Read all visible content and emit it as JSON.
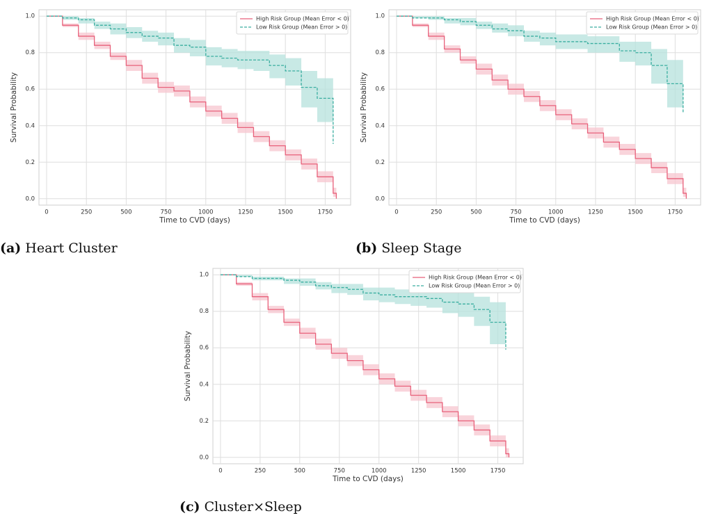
{
  "chart_data": [
    {
      "type": "line",
      "caption": {
        "label": "(a)",
        "text": "Heart Cluster"
      },
      "xlabel": "Time to CVD (days)",
      "ylabel": "Survival Probability",
      "x": [
        0,
        100,
        200,
        300,
        400,
        500,
        600,
        700,
        800,
        900,
        1000,
        1100,
        1200,
        1300,
        1400,
        1500,
        1600,
        1700,
        1800,
        1820
      ],
      "series": [
        {
          "name": "High Risk Group (Mean Error < 0)",
          "color": "#e8607a",
          "band_color": "#f7c5cf",
          "dash": false,
          "values": [
            1.0,
            0.95,
            0.89,
            0.84,
            0.78,
            0.73,
            0.66,
            0.61,
            0.59,
            0.53,
            0.48,
            0.44,
            0.39,
            0.34,
            0.29,
            0.24,
            0.19,
            0.12,
            0.03,
            0.0
          ],
          "lower": [
            1.0,
            0.94,
            0.87,
            0.82,
            0.76,
            0.7,
            0.63,
            0.58,
            0.56,
            0.5,
            0.45,
            0.41,
            0.36,
            0.31,
            0.26,
            0.21,
            0.16,
            0.09,
            0.01,
            0.0
          ],
          "upper": [
            1.0,
            0.96,
            0.91,
            0.86,
            0.8,
            0.76,
            0.69,
            0.64,
            0.62,
            0.56,
            0.51,
            0.47,
            0.42,
            0.37,
            0.32,
            0.27,
            0.22,
            0.15,
            0.06,
            0.02
          ]
        },
        {
          "name": "Low Risk Group (Mean Error > 0)",
          "color": "#3aaea0",
          "band_color": "#b5e2dc",
          "dash": true,
          "values": [
            1.0,
            0.99,
            0.98,
            0.95,
            0.93,
            0.91,
            0.89,
            0.88,
            0.84,
            0.83,
            0.78,
            0.77,
            0.76,
            0.76,
            0.73,
            0.7,
            0.61,
            0.55,
            0.3,
            null
          ],
          "lower": [
            1.0,
            0.98,
            0.96,
            0.93,
            0.9,
            0.88,
            0.86,
            0.84,
            0.8,
            0.78,
            0.73,
            0.72,
            0.71,
            0.7,
            0.66,
            0.62,
            0.5,
            0.42,
            0.13,
            null
          ],
          "upper": [
            1.0,
            1.0,
            0.99,
            0.97,
            0.96,
            0.94,
            0.92,
            0.91,
            0.88,
            0.87,
            0.83,
            0.82,
            0.81,
            0.81,
            0.79,
            0.77,
            0.7,
            0.66,
            0.5,
            null
          ]
        }
      ],
      "xlim": [
        -48,
        1910
      ],
      "ylim": [
        -0.035,
        1.035
      ],
      "xticks": [
        0,
        250,
        500,
        750,
        1000,
        1250,
        1500,
        1750
      ],
      "yticks": [
        {
          "value": 0,
          "label": "0.0"
        },
        0.2,
        0.4,
        0.6,
        0.8,
        {
          "value": 1,
          "label": "1.0"
        }
      ],
      "grid": true,
      "legend": "upper right"
    },
    {
      "type": "line",
      "caption": {
        "label": "(b)",
        "text": "Sleep Stage"
      },
      "xlabel": "Time to CVD (days)",
      "ylabel": "Survival Probability",
      "x": [
        0,
        100,
        200,
        300,
        400,
        500,
        600,
        700,
        800,
        900,
        1000,
        1100,
        1200,
        1300,
        1400,
        1500,
        1600,
        1700,
        1800,
        1820
      ],
      "series": [
        {
          "name": "High Risk Group (Mean Error < 0)",
          "color": "#e8607a",
          "band_color": "#f7c5cf",
          "dash": false,
          "values": [
            1.0,
            0.95,
            0.89,
            0.82,
            0.76,
            0.71,
            0.65,
            0.6,
            0.56,
            0.51,
            0.46,
            0.41,
            0.36,
            0.31,
            0.27,
            0.22,
            0.17,
            0.11,
            0.03,
            0.0
          ],
          "lower": [
            1.0,
            0.94,
            0.87,
            0.8,
            0.74,
            0.68,
            0.62,
            0.57,
            0.53,
            0.48,
            0.43,
            0.38,
            0.33,
            0.28,
            0.24,
            0.19,
            0.14,
            0.08,
            0.01,
            0.0
          ],
          "upper": [
            1.0,
            0.96,
            0.91,
            0.84,
            0.78,
            0.74,
            0.68,
            0.63,
            0.59,
            0.54,
            0.49,
            0.44,
            0.39,
            0.34,
            0.3,
            0.25,
            0.2,
            0.14,
            0.06,
            0.02
          ]
        },
        {
          "name": "Low Risk Group (Mean Error > 0)",
          "color": "#3aaea0",
          "band_color": "#b5e2dc",
          "dash": true,
          "values": [
            1.0,
            0.99,
            0.99,
            0.98,
            0.97,
            0.95,
            0.93,
            0.92,
            0.89,
            0.88,
            0.86,
            0.86,
            0.85,
            0.85,
            0.81,
            0.8,
            0.73,
            0.63,
            0.47,
            null
          ],
          "lower": [
            1.0,
            0.99,
            0.98,
            0.96,
            0.95,
            0.93,
            0.91,
            0.89,
            0.86,
            0.84,
            0.82,
            0.82,
            0.8,
            0.8,
            0.75,
            0.73,
            0.63,
            0.5,
            0.24,
            null
          ],
          "upper": [
            1.0,
            1.0,
            1.0,
            0.99,
            0.99,
            0.97,
            0.96,
            0.95,
            0.92,
            0.91,
            0.9,
            0.9,
            0.89,
            0.89,
            0.86,
            0.86,
            0.82,
            0.76,
            0.6,
            null
          ]
        }
      ],
      "xlim": [
        -48,
        1910
      ],
      "ylim": [
        -0.035,
        1.035
      ],
      "xticks": [
        0,
        250,
        500,
        750,
        1000,
        1250,
        1500,
        1750
      ],
      "yticks": [
        {
          "value": 0,
          "label": "0.0"
        },
        0.2,
        0.4,
        0.6,
        0.8,
        {
          "value": 1,
          "label": "1.0"
        }
      ],
      "grid": true,
      "legend": "upper right"
    },
    {
      "type": "line",
      "caption": {
        "label": "(c)",
        "text": "Cluster×Sleep"
      },
      "xlabel": "Time to CVD (days)",
      "ylabel": "Survival Probability",
      "x": [
        0,
        100,
        200,
        300,
        400,
        500,
        600,
        700,
        800,
        900,
        1000,
        1100,
        1200,
        1300,
        1400,
        1500,
        1600,
        1700,
        1800,
        1820
      ],
      "series": [
        {
          "name": "High Risk Group (Mean Error < 0)",
          "color": "#e8607a",
          "band_color": "#f7c5cf",
          "dash": false,
          "values": [
            1.0,
            0.95,
            0.88,
            0.81,
            0.74,
            0.68,
            0.62,
            0.57,
            0.53,
            0.48,
            0.43,
            0.39,
            0.34,
            0.3,
            0.25,
            0.2,
            0.15,
            0.09,
            0.02,
            0.0
          ],
          "lower": [
            1.0,
            0.94,
            0.86,
            0.79,
            0.72,
            0.65,
            0.59,
            0.54,
            0.5,
            0.45,
            0.4,
            0.36,
            0.31,
            0.27,
            0.22,
            0.17,
            0.12,
            0.06,
            0.0,
            0.0
          ],
          "upper": [
            1.0,
            0.96,
            0.9,
            0.83,
            0.76,
            0.71,
            0.65,
            0.6,
            0.56,
            0.51,
            0.46,
            0.42,
            0.37,
            0.33,
            0.28,
            0.23,
            0.18,
            0.12,
            0.05,
            0.02
          ]
        },
        {
          "name": "Low Risk Group (Mean Error > 0)",
          "color": "#3aaea0",
          "band_color": "#b5e2dc",
          "dash": true,
          "values": [
            1.0,
            0.99,
            0.98,
            0.98,
            0.97,
            0.96,
            0.94,
            0.93,
            0.92,
            0.9,
            0.89,
            0.88,
            0.88,
            0.87,
            0.85,
            0.84,
            0.81,
            0.74,
            0.59,
            null
          ],
          "lower": [
            1.0,
            0.99,
            0.97,
            0.97,
            0.95,
            0.94,
            0.92,
            0.9,
            0.89,
            0.86,
            0.85,
            0.84,
            0.83,
            0.82,
            0.79,
            0.77,
            0.72,
            0.62,
            0.28,
            null
          ],
          "upper": [
            1.0,
            1.0,
            0.99,
            0.99,
            0.98,
            0.98,
            0.96,
            0.95,
            0.95,
            0.93,
            0.93,
            0.92,
            0.92,
            0.92,
            0.9,
            0.9,
            0.88,
            0.85,
            0.8,
            null
          ]
        }
      ],
      "xlim": [
        -48,
        1910
      ],
      "ylim": [
        -0.035,
        1.035
      ],
      "xticks": [
        0,
        250,
        500,
        750,
        1000,
        1250,
        1500,
        1750
      ],
      "yticks": [
        {
          "value": 0,
          "label": "0.0"
        },
        0.2,
        0.4,
        0.6,
        0.8,
        {
          "value": 1,
          "label": "1.0"
        }
      ],
      "grid": true,
      "legend": "upper right"
    }
  ]
}
